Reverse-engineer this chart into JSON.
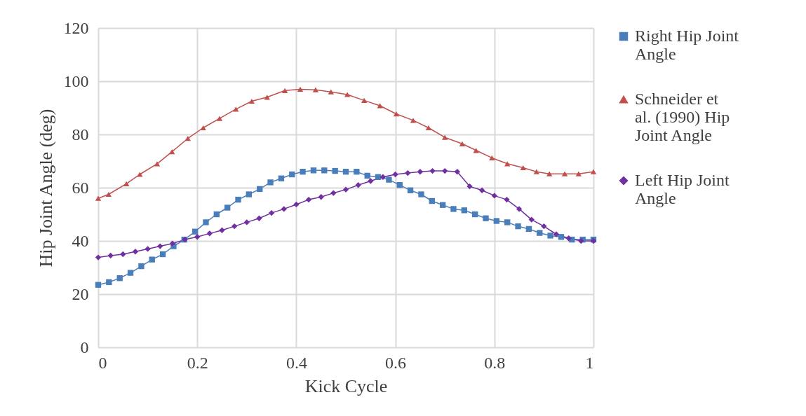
{
  "chart_data": {
    "type": "line",
    "xlabel": "Kick Cycle",
    "ylabel": "Hip Joint Angle (deg)",
    "xlim": [
      0,
      1
    ],
    "xticks": [
      0,
      0.2,
      0.4,
      0.6,
      0.8,
      1
    ],
    "ylim": [
      0,
      120
    ],
    "yticks": [
      0,
      20,
      40,
      60,
      80,
      100,
      120
    ],
    "grid": true,
    "legend": "right",
    "series": [
      {
        "name": "Right Hip Joint Angle",
        "color": "#4a7ebb",
        "marker": "square",
        "x": [
          0,
          0.0217,
          0.0435,
          0.0652,
          0.087,
          0.1087,
          0.1304,
          0.1522,
          0.1739,
          0.1957,
          0.2174,
          0.2391,
          0.2609,
          0.2826,
          0.3043,
          0.3261,
          0.3478,
          0.3696,
          0.3913,
          0.413,
          0.4348,
          0.4565,
          0.4783,
          0.5,
          0.5217,
          0.5435,
          0.5652,
          0.587,
          0.6087,
          0.6304,
          0.6522,
          0.6739,
          0.6957,
          0.7174,
          0.7391,
          0.7609,
          0.7826,
          0.8043,
          0.8261,
          0.8478,
          0.8696,
          0.8913,
          0.913,
          0.9348,
          0.9565,
          0.9783,
          1
        ],
        "values": [
          23.5,
          24.5,
          26,
          28,
          30.5,
          33,
          35,
          38,
          40.5,
          43.5,
          47,
          50,
          52.5,
          55.5,
          57.5,
          59.5,
          62,
          63.5,
          65,
          66,
          66.5,
          66.5,
          66.3,
          66,
          66,
          64.5,
          64,
          63,
          61,
          59,
          57.5,
          55,
          53.5,
          52,
          51.5,
          50,
          48.5,
          47.5,
          47,
          45.5,
          44.5,
          43,
          42,
          41.5,
          40.5,
          40.5,
          40.5
        ]
      },
      {
        "name": "Schneider et al. (1990) Hip Joint Angle",
        "color": "#c0504d",
        "marker": "triangle",
        "x": [
          0,
          0.021,
          0.057,
          0.084,
          0.119,
          0.149,
          0.181,
          0.212,
          0.245,
          0.278,
          0.31,
          0.341,
          0.377,
          0.408,
          0.439,
          0.47,
          0.503,
          0.537,
          0.569,
          0.602,
          0.636,
          0.667,
          0.7,
          0.735,
          0.763,
          0.795,
          0.826,
          0.858,
          0.885,
          0.911,
          0.942,
          0.97,
          1
        ],
        "values": [
          56,
          57.5,
          61.5,
          65,
          69,
          73.5,
          78.5,
          82.5,
          86,
          89.5,
          92.5,
          94,
          96.5,
          97,
          96.8,
          96,
          95,
          92.8,
          90.8,
          87.7,
          85.3,
          82.5,
          78.9,
          76.5,
          74,
          71.2,
          69,
          67.5,
          66,
          65.2,
          65.2,
          65.2,
          66
        ]
      },
      {
        "name": "Left Hip Joint Angle",
        "color": "#7030a0",
        "marker": "diamond",
        "x": [
          0,
          0.025,
          0.05,
          0.075,
          0.1,
          0.125,
          0.15,
          0.175,
          0.2,
          0.225,
          0.25,
          0.275,
          0.3,
          0.325,
          0.35,
          0.375,
          0.4,
          0.425,
          0.45,
          0.475,
          0.5,
          0.525,
          0.55,
          0.575,
          0.6,
          0.625,
          0.65,
          0.675,
          0.7,
          0.725,
          0.75,
          0.775,
          0.8,
          0.825,
          0.85,
          0.875,
          0.9,
          0.925,
          0.95,
          0.975,
          1
        ],
        "values": [
          33.8,
          34.5,
          35,
          36,
          37,
          38,
          39,
          40.5,
          41.5,
          42.8,
          44,
          45.5,
          47,
          48.5,
          50.5,
          52,
          53.7,
          55.5,
          56.5,
          58,
          59.3,
          61,
          62.5,
          64,
          65,
          65.5,
          66,
          66.3,
          66.3,
          66,
          60.5,
          59,
          57,
          55.5,
          52,
          48,
          45.5,
          42.5,
          41,
          40,
          40
        ]
      }
    ]
  }
}
